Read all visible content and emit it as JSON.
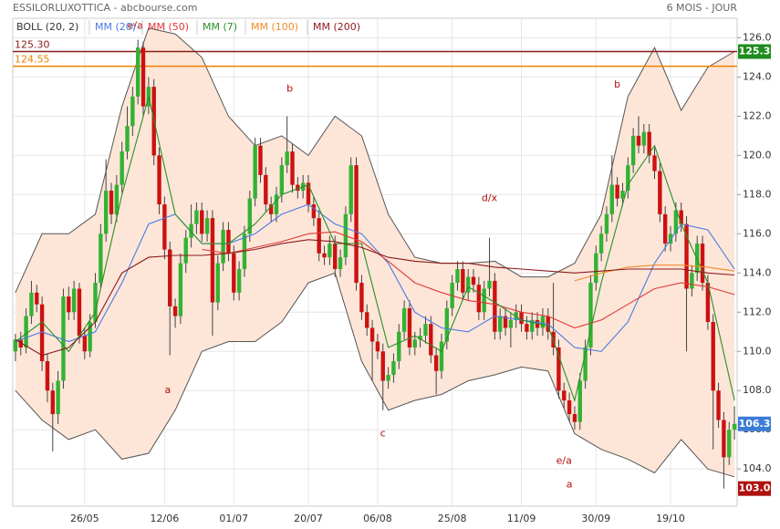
{
  "chart_data": {
    "type": "candlestick",
    "title": "ESSILORLUXOTTICA - abcbourse.com",
    "subtitle": "6 MOIS - JOUR",
    "xlim": [
      -0.5,
      135.5
    ],
    "xticks": [
      {
        "value": 13,
        "label": "26/05"
      },
      {
        "value": 28,
        "label": "12/06"
      },
      {
        "value": 41,
        "label": "01/07"
      },
      {
        "value": 55,
        "label": "20/07"
      },
      {
        "value": 68,
        "label": "06/08"
      },
      {
        "value": 82,
        "label": "25/08"
      },
      {
        "value": 95,
        "label": "11/09"
      },
      {
        "value": 109,
        "label": "30/09"
      },
      {
        "value": 123,
        "label": "19/10"
      }
    ],
    "ylim": [
      102.1,
      127.0
    ],
    "yticks": [
      {
        "value": 104,
        "label": "104.0"
      },
      {
        "value": 106,
        "label": "106.0"
      },
      {
        "value": 108,
        "label": "108.0"
      },
      {
        "value": 110,
        "label": "110.0"
      },
      {
        "value": 112,
        "label": "112.0"
      },
      {
        "value": 114,
        "label": "114.0"
      },
      {
        "value": 116,
        "label": "116.0"
      },
      {
        "value": 118,
        "label": "118.0"
      },
      {
        "value": 120,
        "label": "120.0"
      },
      {
        "value": 122,
        "label": "122.0"
      },
      {
        "value": 124,
        "label": "124.0"
      },
      {
        "value": 126,
        "label": "126.0"
      }
    ],
    "grid": true,
    "up_color": "#33b233",
    "down_color": "#cc1111",
    "ohlc": [
      [
        110.0,
        110.9,
        109.5,
        110.6
      ],
      [
        110.6,
        111.0,
        109.8,
        110.2
      ],
      [
        110.2,
        112.2,
        109.9,
        111.8
      ],
      [
        111.8,
        113.6,
        111.4,
        113.0
      ],
      [
        113.0,
        113.4,
        112.0,
        112.4
      ],
      [
        112.4,
        112.8,
        109.0,
        109.5
      ],
      [
        109.5,
        109.9,
        107.4,
        108.0
      ],
      [
        108.0,
        108.4,
        104.9,
        106.8
      ],
      [
        106.8,
        109.0,
        106.3,
        108.5
      ],
      [
        108.5,
        113.2,
        108.1,
        112.8
      ],
      [
        112.8,
        113.3,
        111.6,
        112.0
      ],
      [
        112.0,
        113.6,
        111.6,
        113.2
      ],
      [
        113.2,
        113.5,
        110.4,
        110.8
      ],
      [
        110.8,
        111.2,
        109.6,
        110.0
      ],
      [
        110.0,
        111.9,
        109.7,
        111.5
      ],
      [
        111.5,
        114.0,
        111.2,
        113.5
      ],
      [
        113.5,
        116.5,
        113.2,
        116.0
      ],
      [
        116.0,
        119.8,
        115.6,
        118.2
      ],
      [
        118.2,
        118.6,
        116.5,
        117.0
      ],
      [
        117.0,
        119.0,
        116.6,
        118.5
      ],
      [
        118.5,
        120.7,
        118.1,
        120.2
      ],
      [
        120.2,
        122.5,
        119.8,
        121.5
      ],
      [
        121.5,
        123.5,
        121.0,
        123.0
      ],
      [
        123.0,
        125.9,
        122.6,
        125.5
      ],
      [
        125.5,
        125.8,
        122.0,
        122.5
      ],
      [
        122.5,
        124.0,
        122.1,
        123.5
      ],
      [
        123.5,
        123.9,
        119.5,
        120.0
      ],
      [
        120.0,
        120.4,
        117.0,
        117.5
      ],
      [
        117.5,
        117.9,
        114.7,
        115.2
      ],
      [
        115.2,
        115.6,
        109.8,
        112.3
      ],
      [
        112.3,
        112.7,
        111.2,
        111.8
      ],
      [
        111.8,
        115.0,
        111.4,
        114.5
      ],
      [
        114.5,
        116.2,
        114.0,
        115.8
      ],
      [
        115.8,
        117.5,
        115.3,
        116.5
      ],
      [
        116.5,
        117.6,
        116.0,
        117.2
      ],
      [
        117.2,
        117.6,
        115.6,
        116.0
      ],
      [
        116.0,
        117.2,
        115.6,
        116.8
      ],
      [
        116.8,
        117.2,
        110.8,
        112.5
      ],
      [
        112.5,
        114.9,
        112.1,
        114.5
      ],
      [
        114.5,
        116.6,
        114.1,
        116.2
      ],
      [
        116.2,
        116.6,
        114.6,
        115.0
      ],
      [
        115.0,
        115.4,
        112.6,
        113.0
      ],
      [
        113.0,
        114.6,
        112.6,
        114.2
      ],
      [
        114.2,
        116.4,
        113.8,
        116.0
      ],
      [
        116.0,
        118.2,
        115.6,
        117.8
      ],
      [
        117.8,
        120.9,
        117.4,
        120.5
      ],
      [
        120.5,
        120.9,
        118.6,
        119.0
      ],
      [
        119.0,
        119.4,
        117.1,
        117.5
      ],
      [
        117.5,
        117.9,
        116.6,
        117.0
      ],
      [
        117.0,
        118.4,
        116.6,
        118.0
      ],
      [
        118.0,
        119.9,
        117.6,
        119.5
      ],
      [
        119.5,
        122.0,
        119.1,
        120.2
      ],
      [
        120.2,
        120.6,
        118.1,
        118.5
      ],
      [
        118.5,
        118.9,
        117.8,
        118.2
      ],
      [
        118.2,
        119.0,
        117.8,
        118.6
      ],
      [
        118.6,
        119.0,
        117.1,
        117.5
      ],
      [
        117.5,
        117.9,
        116.4,
        116.8
      ],
      [
        116.8,
        117.2,
        114.6,
        115.0
      ],
      [
        115.0,
        115.4,
        114.4,
        114.8
      ],
      [
        114.8,
        115.9,
        114.4,
        115.5
      ],
      [
        115.5,
        115.9,
        113.8,
        114.2
      ],
      [
        114.2,
        115.2,
        113.8,
        114.8
      ],
      [
        114.8,
        117.4,
        114.4,
        117.0
      ],
      [
        117.0,
        119.9,
        116.6,
        119.5
      ],
      [
        119.5,
        119.9,
        113.1,
        113.5
      ],
      [
        113.5,
        113.9,
        111.6,
        112.0
      ],
      [
        112.0,
        112.4,
        110.8,
        111.2
      ],
      [
        111.2,
        111.6,
        108.5,
        110.5
      ],
      [
        110.5,
        110.9,
        109.6,
        110.0
      ],
      [
        110.0,
        110.4,
        107.0,
        108.5
      ],
      [
        108.5,
        109.2,
        108.1,
        108.8
      ],
      [
        108.8,
        109.9,
        108.4,
        109.5
      ],
      [
        109.5,
        111.4,
        109.1,
        111.0
      ],
      [
        111.0,
        112.6,
        110.6,
        112.2
      ],
      [
        112.2,
        112.6,
        109.8,
        110.2
      ],
      [
        110.2,
        111.0,
        109.8,
        110.6
      ],
      [
        110.6,
        111.2,
        110.2,
        110.8
      ],
      [
        110.8,
        111.8,
        110.4,
        111.4
      ],
      [
        111.4,
        111.8,
        109.4,
        109.8
      ],
      [
        109.8,
        110.2,
        107.8,
        109.0
      ],
      [
        109.0,
        110.9,
        108.6,
        110.5
      ],
      [
        110.5,
        112.6,
        110.1,
        112.2
      ],
      [
        112.2,
        113.9,
        111.8,
        113.5
      ],
      [
        113.5,
        114.6,
        113.1,
        114.2
      ],
      [
        114.2,
        114.6,
        112.6,
        113.0
      ],
      [
        113.0,
        114.2,
        112.6,
        113.8
      ],
      [
        113.8,
        114.2,
        113.0,
        113.4
      ],
      [
        113.4,
        113.8,
        111.6,
        112.0
      ],
      [
        112.0,
        113.6,
        111.6,
        113.2
      ],
      [
        113.2,
        115.8,
        112.8,
        113.6
      ],
      [
        113.6,
        114.0,
        110.6,
        111.0
      ],
      [
        111.0,
        112.2,
        110.6,
        111.8
      ],
      [
        111.8,
        112.2,
        110.8,
        111.2
      ],
      [
        111.2,
        112.0,
        110.2,
        111.6
      ],
      [
        111.6,
        112.4,
        111.2,
        112.0
      ],
      [
        112.0,
        112.4,
        111.0,
        111.4
      ],
      [
        111.4,
        111.8,
        110.6,
        111.0
      ],
      [
        111.0,
        112.0,
        110.6,
        111.6
      ],
      [
        111.6,
        112.0,
        110.8,
        111.2
      ],
      [
        111.2,
        112.2,
        110.8,
        111.8
      ],
      [
        111.8,
        112.2,
        110.6,
        111.0
      ],
      [
        111.0,
        113.5,
        109.8,
        110.2
      ],
      [
        110.2,
        110.6,
        107.6,
        108.0
      ],
      [
        108.0,
        108.4,
        107.1,
        107.5
      ],
      [
        107.5,
        107.9,
        106.4,
        106.8
      ],
      [
        106.8,
        107.2,
        106.0,
        106.4
      ],
      [
        106.4,
        108.9,
        106.0,
        108.5
      ],
      [
        108.5,
        110.6,
        108.1,
        110.2
      ],
      [
        110.2,
        113.9,
        109.8,
        113.5
      ],
      [
        113.5,
        115.4,
        113.1,
        115.0
      ],
      [
        115.0,
        116.4,
        114.6,
        116.0
      ],
      [
        116.0,
        117.4,
        115.6,
        117.0
      ],
      [
        117.0,
        120.0,
        116.6,
        118.5
      ],
      [
        118.5,
        118.9,
        117.4,
        117.8
      ],
      [
        117.8,
        118.6,
        117.4,
        118.2
      ],
      [
        118.2,
        119.9,
        117.8,
        119.5
      ],
      [
        119.5,
        121.4,
        119.1,
        121.0
      ],
      [
        121.0,
        122.0,
        120.1,
        120.5
      ],
      [
        120.5,
        121.6,
        120.1,
        121.2
      ],
      [
        121.2,
        121.6,
        119.6,
        120.0
      ],
      [
        120.0,
        120.4,
        118.8,
        119.2
      ],
      [
        119.2,
        119.6,
        116.6,
        117.0
      ],
      [
        117.0,
        117.4,
        115.1,
        115.5
      ],
      [
        115.5,
        116.4,
        115.1,
        116.0
      ],
      [
        116.0,
        117.6,
        115.6,
        117.2
      ],
      [
        117.2,
        117.6,
        116.1,
        116.5
      ],
      [
        116.5,
        116.9,
        110.0,
        113.2
      ],
      [
        113.2,
        114.4,
        112.8,
        114.0
      ],
      [
        114.0,
        115.9,
        113.6,
        115.5
      ],
      [
        115.5,
        115.9,
        113.1,
        113.5
      ],
      [
        113.5,
        113.9,
        111.1,
        111.5
      ],
      [
        111.5,
        111.9,
        105.0,
        108.0
      ],
      [
        108.0,
        108.4,
        106.1,
        106.5
      ],
      [
        106.5,
        106.9,
        103.0,
        104.6
      ],
      [
        104.6,
        106.4,
        104.2,
        106.0
      ],
      [
        106.0,
        107.2,
        105.5,
        106.3
      ]
    ],
    "x": [
      0,
      5,
      10,
      15,
      20,
      25,
      30,
      35,
      40,
      45,
      50,
      55,
      60,
      65,
      70,
      75,
      80,
      85,
      90,
      95,
      100,
      105,
      110,
      115,
      120,
      125,
      130,
      135
    ],
    "bollinger": {
      "name": "BOLL (20, 2)",
      "color": "#555555",
      "fill": "#fde6d8",
      "upper": [
        113,
        116,
        116,
        117,
        122.5,
        126.5,
        126.2,
        125,
        122,
        120.5,
        121,
        120,
        122,
        121,
        117,
        114.8,
        114.5,
        114.5,
        114.6,
        113.8,
        113.8,
        114.5,
        117,
        123,
        125.5,
        122.3,
        124.5,
        125.3
      ],
      "lower": [
        108,
        106.5,
        105.5,
        106,
        104.5,
        104.8,
        107,
        110,
        110.5,
        110.5,
        111.5,
        113.5,
        114,
        109.5,
        107,
        107.5,
        107.8,
        108.5,
        108.8,
        109.2,
        109,
        105.8,
        105,
        104.5,
        103.8,
        105.5,
        104,
        103.6
      ]
    },
    "series": [
      {
        "name": "MM (20)",
        "color": "#4a7be0",
        "values": [
          110.5,
          111,
          110.5,
          111,
          113.5,
          116.5,
          117,
          115.5,
          115.5,
          116,
          117,
          117.5,
          116.5,
          116,
          114.5,
          112,
          111.2,
          111,
          111.8,
          111.6,
          111.4,
          110.2,
          110,
          111.5,
          114.5,
          116.5,
          116.2,
          114.2
        ]
      },
      {
        "name": "MM (50)",
        "color": "#e03a3a",
        "values": [
          null,
          null,
          null,
          null,
          null,
          null,
          null,
          115.2,
          115,
          115.3,
          115.6,
          116,
          116.1,
          115.6,
          114.6,
          113.5,
          113,
          112.6,
          112.4,
          112,
          111.8,
          111.2,
          111.6,
          112.4,
          113.2,
          113.5,
          113.3,
          112.9
        ]
      },
      {
        "name": "MM (7)",
        "color": "#2a8f2a",
        "values": [
          110.5,
          111.5,
          110,
          112,
          118,
          123,
          117,
          115.5,
          115.5,
          116.5,
          118,
          118.5,
          115.5,
          115.5,
          110.2,
          110.8,
          110,
          113.3,
          112.5,
          111.6,
          111.3,
          107.5,
          113.5,
          118.5,
          120.5,
          116.5,
          113.5,
          107.5
        ]
      },
      {
        "name": "MM (100)",
        "color": "#f08a2a",
        "values": [
          null,
          null,
          null,
          null,
          null,
          null,
          null,
          null,
          null,
          null,
          null,
          null,
          null,
          null,
          null,
          null,
          null,
          null,
          null,
          null,
          null,
          113.6,
          114,
          114.3,
          114.4,
          114.4,
          114.3,
          114.1
        ]
      },
      {
        "name": "MM (200)",
        "color": "#8b1a1a",
        "values": [
          110.6,
          109.8,
          110.2,
          111.5,
          114,
          114.8,
          114.9,
          114.9,
          115,
          115.2,
          115.5,
          115.7,
          115.6,
          115.3,
          114.8,
          114.6,
          114.5,
          114.5,
          114.3,
          114.2,
          114.1,
          114,
          114.1,
          114.2,
          114.2,
          114.2,
          114,
          113.9
        ]
      }
    ],
    "levels": [
      {
        "value": 125.3,
        "label": "125.30",
        "color": "#8b1a1a"
      },
      {
        "value": 124.55,
        "color": "#f08000"
      }
    ],
    "price_tags": [
      {
        "value": 125.3,
        "color": "#1e8c1e"
      },
      {
        "value": 106.3,
        "color": "#3a7bd5"
      },
      {
        "value": 103.0,
        "label": "103.0",
        "color": "#b01010"
      }
    ],
    "annotations": [
      {
        "text": "e/a",
        "x": 22.5,
        "y": 126.6
      },
      {
        "text": "b",
        "x": 51.5,
        "y": 123.4
      },
      {
        "text": "a",
        "x": 28.6,
        "y": 108.0
      },
      {
        "text": "c",
        "x": 69,
        "y": 105.8
      },
      {
        "text": "d/x",
        "x": 89,
        "y": 117.8
      },
      {
        "text": "e/a",
        "x": 103,
        "y": 104.4
      },
      {
        "text": "a",
        "x": 104,
        "y": 103.2
      },
      {
        "text": "b",
        "x": 113,
        "y": 123.6
      }
    ]
  }
}
